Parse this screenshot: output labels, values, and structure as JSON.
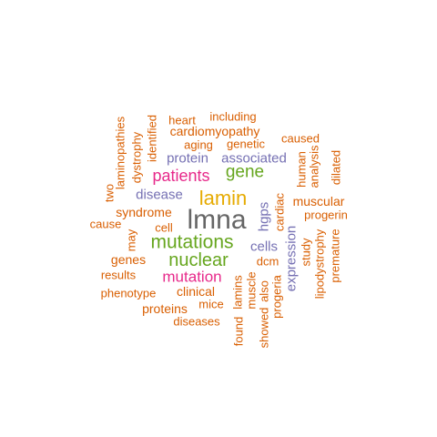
{
  "palette": {
    "orange": "#D95F02",
    "purple": "#7570B3",
    "pink": "#E7298A",
    "green": "#66A61E",
    "gold": "#E6AB02",
    "gray": "#666666"
  },
  "words": {
    "lmna": "lmna",
    "lamin": "lamin",
    "mutations": "mutations",
    "nuclear": "nuclear",
    "gene": "gene",
    "patients": "patients",
    "mutation": "mutation",
    "cells": "cells",
    "expression": "expression",
    "hgps": "hgps",
    "protein": "protein",
    "associated": "associated",
    "disease": "disease",
    "cardiac": "cardiac",
    "heart": "heart",
    "including": "including",
    "cardiomyopathy": "cardiomyopathy",
    "aging": "aging",
    "genetic": "genetic",
    "caused": "caused",
    "laminopathies": "laminopathies",
    "dystrophy": "dystrophy",
    "identified": "identified",
    "two": "two",
    "human": "human",
    "analysis": "analysis",
    "dilated": "dilated",
    "muscular": "muscular",
    "progerin": "progerin",
    "syndrome": "syndrome",
    "cause": "cause",
    "cell": "cell",
    "may": "may",
    "genes": "genes",
    "results": "results",
    "phenotype": "phenotype",
    "clinical": "clinical",
    "mice": "mice",
    "proteins": "proteins",
    "diseases": "diseases",
    "lamins": "lamins",
    "muscle": "muscle",
    "found": "found",
    "showed": "showed",
    "also": "also",
    "dcm": "dcm",
    "progeria": "progeria",
    "study": "study",
    "lipodystrophy": "lipodystrophy",
    "premature": "premature"
  }
}
